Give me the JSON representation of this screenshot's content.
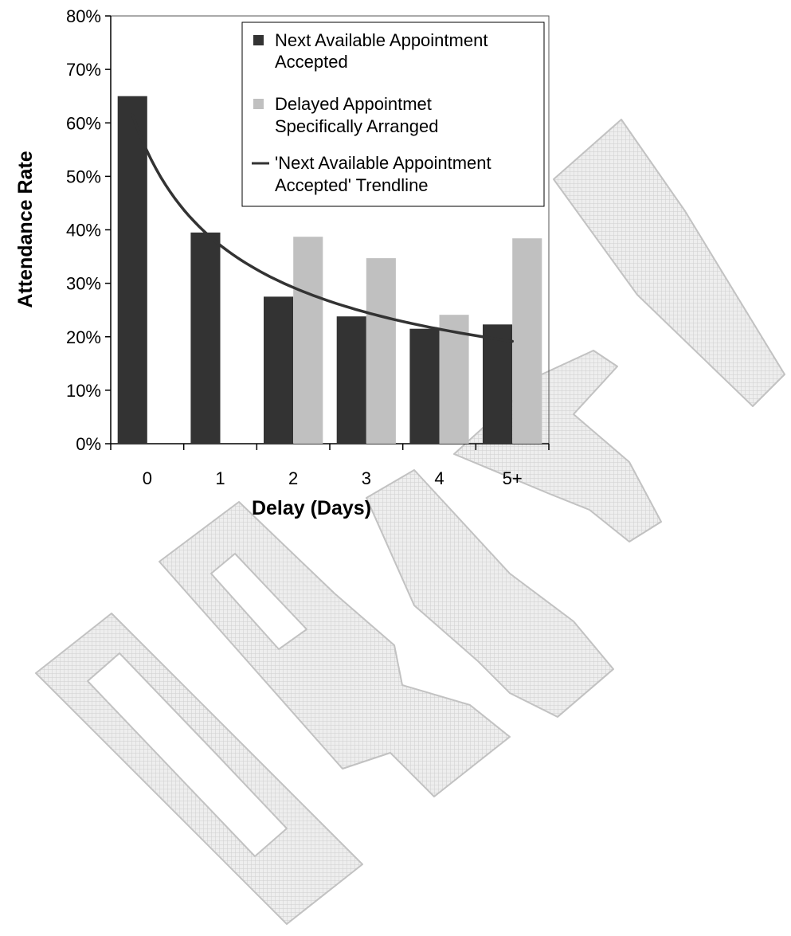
{
  "watermark": {
    "text": "DRAFT"
  },
  "chart_data": {
    "type": "bar",
    "categories": [
      "0",
      "1",
      "2",
      "3",
      "4",
      "5+"
    ],
    "series": [
      {
        "name": "Next Available Appointment Accepted",
        "color": "#333333",
        "values": [
          0.65,
          0.395,
          0.275,
          0.238,
          0.215,
          0.223
        ]
      },
      {
        "name": "Delayed Appointment Specifically Arranged",
        "color": "#c0c0c0",
        "values": [
          null,
          null,
          0.387,
          0.347,
          0.241,
          0.384
        ]
      }
    ],
    "trendline": {
      "name": "'Next Available Appointment Accepted' Trendline",
      "legend_lines": [
        "'Next Available Appointment",
        "Accepted' Trendline"
      ],
      "series": "Next Available Appointment Accepted",
      "type": "power",
      "color": "#333333"
    },
    "legend_lines": [
      [
        "Next Available Appointment",
        "Accepted"
      ],
      [
        "Delayed Appointmet",
        "Specifically Arranged"
      ]
    ],
    "legend_position": "top-right",
    "title": "",
    "xlabel": "Delay (Days)",
    "ylabel": "Attendance Rate",
    "ylim": [
      0,
      0.8
    ],
    "yticks": [
      "0%",
      "10%",
      "20%",
      "30%",
      "40%",
      "50%",
      "60%",
      "70%",
      "80%"
    ],
    "grid": false
  }
}
